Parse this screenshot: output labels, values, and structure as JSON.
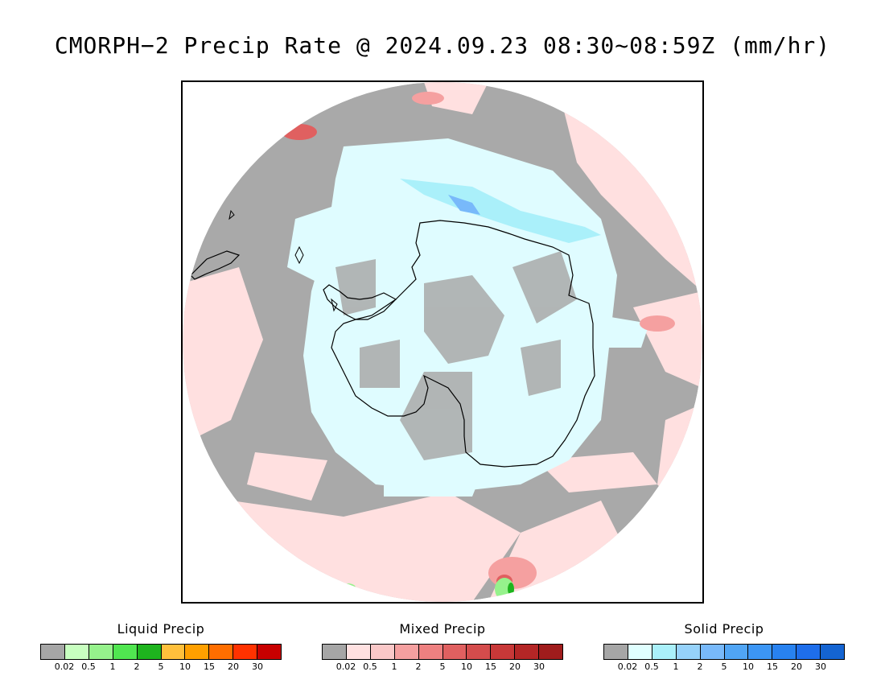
{
  "title": "CMORPH−2 Precip Rate @ 2024.09.23 08:30~08:59Z (mm/hr)",
  "colors": {
    "background": "#ffffff",
    "no_precip_gray": "#a9a9a9",
    "ocean_light_pink": "#ffe0e0",
    "antarctic_light_cyan": "#dffcff",
    "coastline": "#000000"
  },
  "legends": [
    {
      "key": "liquid",
      "title": "Liquid Precip",
      "colors": [
        "#a6a6a6",
        "#c8ffc0",
        "#96f28c",
        "#50e650",
        "#1eb41e",
        "#ffc03c",
        "#ffa000",
        "#ff6e00",
        "#ff3200",
        "#c80000"
      ],
      "ticks": [
        "0.02",
        "0.5",
        "1",
        "2",
        "5",
        "10",
        "15",
        "20",
        "30"
      ]
    },
    {
      "key": "mixed",
      "title": "Mixed Precip",
      "colors": [
        "#a6a6a6",
        "#ffe1e1",
        "#fac8c8",
        "#f5a0a0",
        "#ee8080",
        "#e06060",
        "#d44c4c",
        "#c83838",
        "#b42626",
        "#a01c1c"
      ],
      "ticks": [
        "0.02",
        "0.5",
        "1",
        "2",
        "5",
        "10",
        "15",
        "20",
        "30"
      ]
    },
    {
      "key": "solid",
      "title": "Solid Precip",
      "colors": [
        "#a6a6a6",
        "#e0ffff",
        "#aaf0fa",
        "#96d2fa",
        "#78b9fa",
        "#50a5f5",
        "#3c96f5",
        "#2882f0",
        "#1e6eeb",
        "#1464d2"
      ],
      "ticks": [
        "0.02",
        "0.5",
        "1",
        "2",
        "5",
        "10",
        "15",
        "20",
        "30"
      ]
    }
  ]
}
